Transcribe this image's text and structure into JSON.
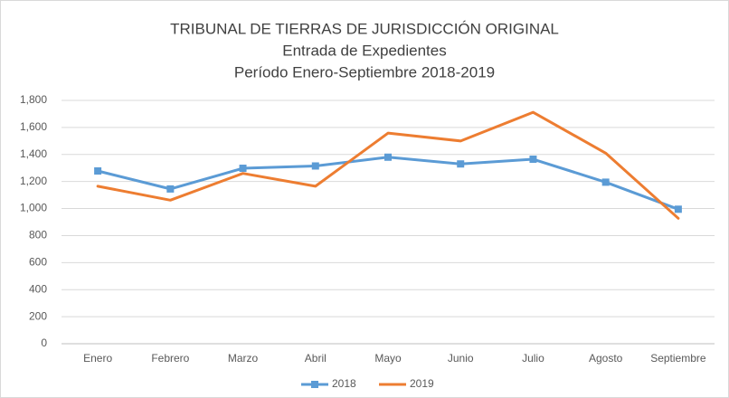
{
  "chart_data": {
    "type": "line",
    "title": [
      "TRIBUNAL DE TIERRAS DE JURISDICCIÓN ORIGINAL",
      "Entrada de Expedientes",
      "Período Enero-Septiembre 2018-2019"
    ],
    "categories": [
      "Enero",
      "Febrero",
      "Marzo",
      "Abril",
      "Mayo",
      "Junio",
      "Julio",
      "Agosto",
      "Septiembre"
    ],
    "series": [
      {
        "name": "2018",
        "color": "#5b9bd5",
        "marker": "square",
        "values": [
          1278,
          1145,
          1298,
          1315,
          1380,
          1330,
          1365,
          1195,
          995
        ]
      },
      {
        "name": "2019",
        "color": "#ed7d31",
        "values": [
          1165,
          1062,
          1260,
          1165,
          1558,
          1500,
          1712,
          1410,
          928
        ]
      }
    ],
    "ylim": [
      0,
      1800
    ],
    "yticks": [
      0,
      200,
      400,
      600,
      800,
      {
        "value": 1000,
        "label": "1,000"
      },
      {
        "value": 1200,
        "label": "1,200"
      },
      {
        "value": 1400,
        "label": "1,400"
      },
      {
        "value": 1600,
        "label": "1,600"
      },
      {
        "value": 1800,
        "label": "1,800"
      }
    ],
    "grid": true,
    "legend": "bottom"
  }
}
